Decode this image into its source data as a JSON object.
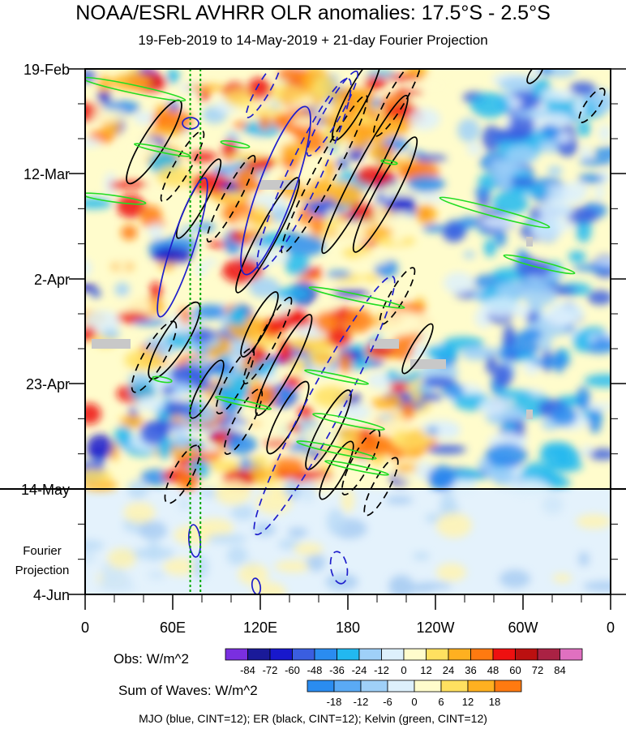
{
  "title": "NOAA/ESRL AVHRR OLR anomalies: 17.5°S - 2.5°S",
  "subtitle": "19-Feb-2019 to 14-May-2019 + 21-day Fourier Projection",
  "footnote": "MJO (blue, CINT=12); ER (black, CINT=12); Kelvin (green, CINT=12)",
  "colors": {
    "mjo": "#1e1ecc",
    "er": "#000000",
    "kelvin": "#22dd22",
    "mjo_line": "#00aa00"
  },
  "chart_data": {
    "type": "heatmap",
    "x_axis": {
      "ticks": [
        "0",
        "60E",
        "120E",
        "180",
        "120W",
        "60W",
        "0"
      ],
      "lon_range": [
        0,
        360
      ]
    },
    "y_axis": {
      "ticks": [
        "19-Feb",
        "12-Mar",
        "2-Apr",
        "23-Apr",
        "14-May",
        "4-Jun"
      ],
      "projection_label": "Fourier Projection",
      "obs_end": "14-May"
    },
    "obs_colorbar": {
      "label": "Obs: W/m^2",
      "levels": [
        "-84",
        "-72",
        "-60",
        "-48",
        "-36",
        "-24",
        "-12",
        "0",
        "12",
        "24",
        "36",
        "48",
        "60",
        "72",
        "84"
      ],
      "colors": [
        "#7a2fe0",
        "#1a1a99",
        "#1818cc",
        "#3a5ee0",
        "#2a8cf0",
        "#22b8f0",
        "#9fd0f8",
        "#ddf0fc",
        "#fffccc",
        "#ffe060",
        "#ffb020",
        "#ff7a10",
        "#ee1010",
        "#bb1010",
        "#aa2244",
        "#e070c0"
      ]
    },
    "waves_colorbar": {
      "label": "Sum of Waves: W/m^2",
      "levels": [
        "-18",
        "-12",
        "-6",
        "0",
        "6",
        "12",
        "18"
      ],
      "colors": [
        "#2a8cf0",
        "#5aaaf5",
        "#9fd0f8",
        "#ddf0fc",
        "#fffccc",
        "#ffe060",
        "#ffb020",
        "#ff7a10"
      ]
    },
    "mjo_lines_lon": [
      72,
      79
    ]
  }
}
